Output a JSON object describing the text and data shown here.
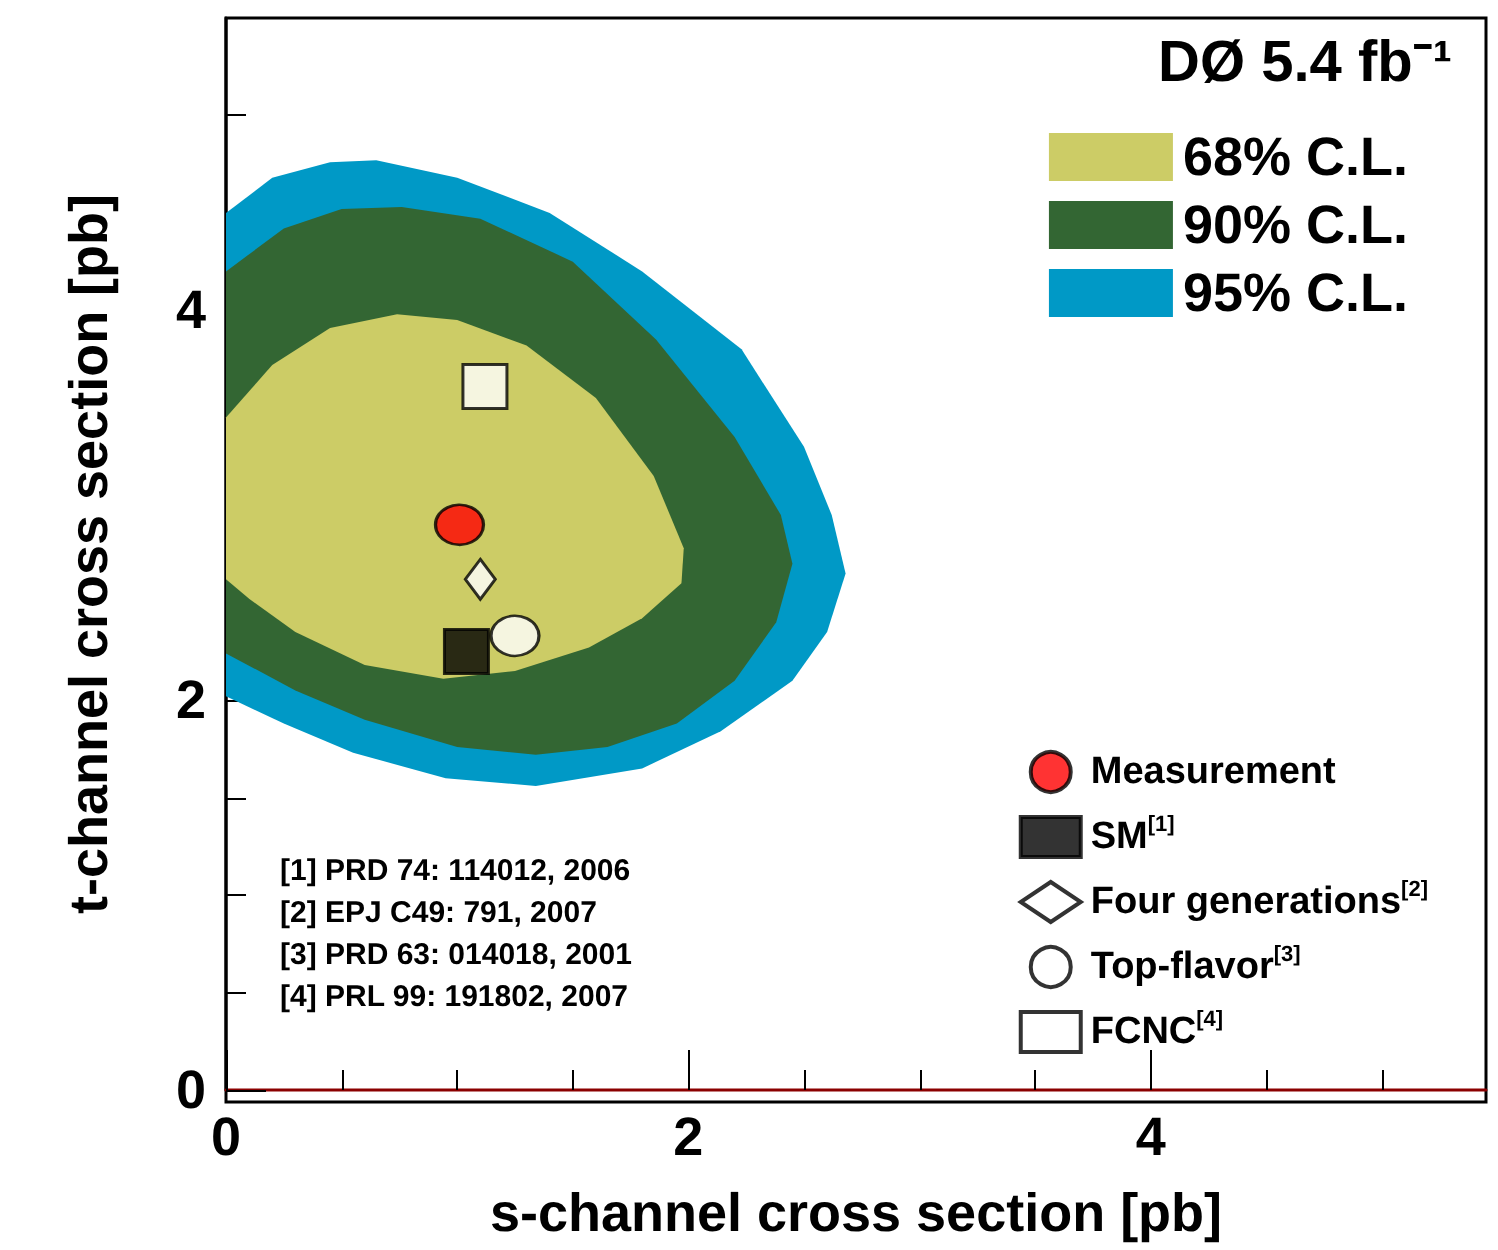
{
  "chart_data": {
    "type": "area",
    "title": "DØ 5.4 fb⁻¹",
    "xlabel": "s-channel cross section [pb]",
    "ylabel": "t-channel cross section [pb]",
    "xlim": [
      0,
      5.45
    ],
    "ylim": [
      0,
      5.5
    ],
    "xticks": [
      0,
      2,
      4
    ],
    "yticks": [
      0,
      2,
      4
    ],
    "grid": false,
    "legend": "right",
    "annotations": [
      "[1] PRD 74: 114012, 2006",
      "[2] EPJ C49: 791, 2007",
      "[3] PRD 63: 014018, 2001",
      "[4] PRL 99: 191802, 2007"
    ],
    "series": [
      {
        "name": "95% C.L.",
        "color": "#0099c6",
        "x": [
          0,
          0.2,
          0.45,
          0.65,
          1.0,
          1.4,
          1.8,
          2.23,
          2.5,
          2.62,
          2.68,
          2.6,
          2.45,
          2.14,
          1.8,
          1.34,
          0.95,
          0.55,
          0.25,
          0
        ],
        "values": [
          4.5,
          4.68,
          4.76,
          4.77,
          4.68,
          4.5,
          4.2,
          3.8,
          3.3,
          2.95,
          2.65,
          2.35,
          2.1,
          1.84,
          1.65,
          1.56,
          1.6,
          1.73,
          1.88,
          2.02
        ]
      },
      {
        "name": "90% C.L.",
        "color": "#336633",
        "x": [
          0,
          0.25,
          0.5,
          0.76,
          1.1,
          1.5,
          1.86,
          2.2,
          2.4,
          2.45,
          2.38,
          2.2,
          1.95,
          1.65,
          1.34,
          1.0,
          0.6,
          0.3,
          0
        ],
        "values": [
          4.2,
          4.42,
          4.52,
          4.53,
          4.47,
          4.25,
          3.85,
          3.35,
          2.95,
          2.7,
          2.4,
          2.1,
          1.88,
          1.76,
          1.72,
          1.76,
          1.9,
          2.05,
          2.24
        ]
      },
      {
        "name": "68% C.L.",
        "color": "#cccc66",
        "x": [
          0,
          0.2,
          0.45,
          0.74,
          1.0,
          1.3,
          1.6,
          1.85,
          1.98,
          1.97,
          1.8,
          1.57,
          1.25,
          0.94,
          0.6,
          0.3,
          0.1,
          0
        ],
        "values": [
          3.45,
          3.72,
          3.91,
          3.98,
          3.95,
          3.82,
          3.55,
          3.15,
          2.78,
          2.6,
          2.42,
          2.27,
          2.15,
          2.11,
          2.18,
          2.35,
          2.52,
          2.62
        ]
      },
      {
        "name": "Measurement",
        "type": "scatter",
        "marker": "circle",
        "color": "#ff0000",
        "x": [
          1.01
        ],
        "values": [
          2.9
        ]
      },
      {
        "name": "SM$^{[1]}$",
        "type": "scatter",
        "marker": "square",
        "color": "#000000",
        "x": [
          1.04
        ],
        "values": [
          2.25
        ]
      },
      {
        "name": "Four generations$^{[2]}$",
        "type": "scatter",
        "marker": "diamond",
        "color": "#ffffff",
        "x": [
          1.1
        ],
        "values": [
          2.62
        ]
      },
      {
        "name": "Top-flavor$^{[3]}$",
        "type": "scatter",
        "marker": "circle",
        "color": "#ffffff",
        "x": [
          1.25
        ],
        "values": [
          2.33
        ]
      },
      {
        "name": "FCNC$^{[4]}$",
        "type": "scatter",
        "marker": "square",
        "color": "#ffffff",
        "x": [
          1.12
        ],
        "values": [
          3.61
        ]
      }
    ]
  }
}
